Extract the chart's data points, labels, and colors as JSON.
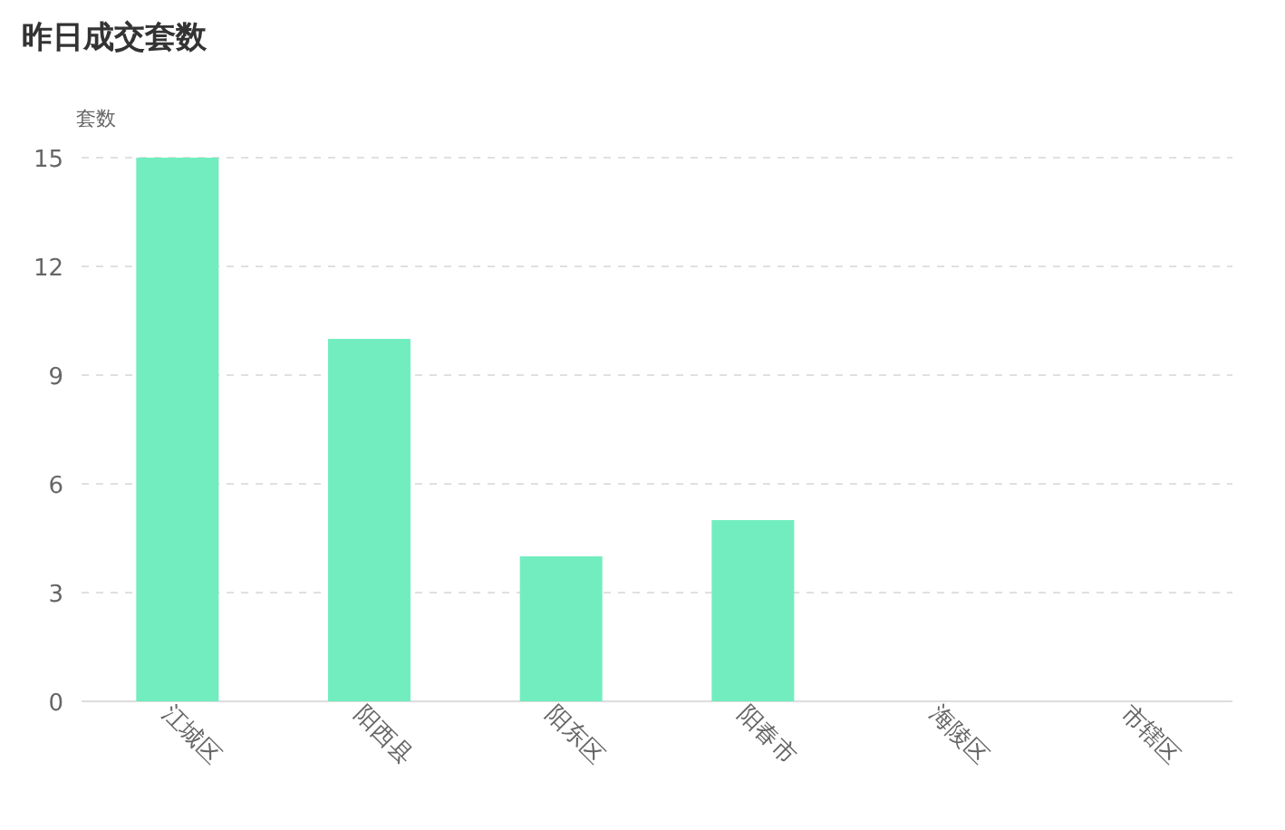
{
  "chart_data": {
    "type": "bar",
    "title": "昨日成交套数",
    "ylabel": "套数",
    "categories": [
      "江城区",
      "阳西县",
      "阳东区",
      "阳春市",
      "海陵区",
      "市辖区"
    ],
    "values": [
      15,
      10,
      4,
      5,
      0,
      0
    ],
    "color": "#72edc0",
    "ylim": [
      0,
      15
    ],
    "yticks": [
      0,
      3,
      6,
      9,
      12,
      15
    ],
    "grid": "y"
  }
}
